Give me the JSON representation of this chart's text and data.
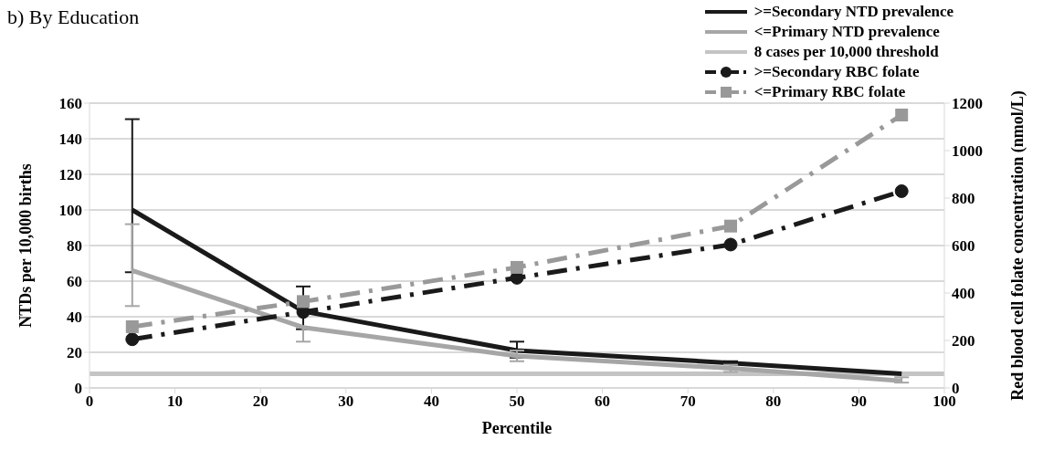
{
  "chart_data": {
    "type": "line",
    "title": "b) By Education",
    "xlabel": "Percentile",
    "ylabel": "NTDs per 10,000 births",
    "y2label": "Red blood cell folate concentration (nmol/L)",
    "x": [
      5,
      25,
      50,
      75,
      95
    ],
    "series": [
      {
        "name": ">=Secondary NTD prevalence",
        "color": "#1a1a1a",
        "values": [
          100,
          43,
          21,
          14,
          8
        ],
        "errors": [
          [
            65,
            151
          ],
          [
            33,
            57
          ],
          [
            17,
            26
          ],
          [
            11,
            15
          ],
          null
        ],
        "marker": "none",
        "line_style": "solid"
      },
      {
        "name": "<=Primary NTD prevalence",
        "color": "#a6a6a6",
        "values": [
          66,
          34,
          18,
          11,
          4
        ],
        "errors": [
          [
            46,
            92
          ],
          [
            26,
            34
          ],
          [
            15,
            21
          ],
          [
            9,
            13
          ],
          [
            3,
            6
          ]
        ],
        "marker": "none",
        "line_style": "solid"
      },
      {
        "name": "8 cases per 10,000 threshold",
        "color": "#c4c4c4",
        "x": [
          0,
          100
        ],
        "values": [
          8,
          8
        ],
        "marker": "none",
        "line_style": "solid"
      },
      {
        "name": ">=Secondary RBC folate",
        "color": "#1a1a1a",
        "axis": "y2",
        "values": [
          205,
          320,
          464,
          604,
          829
        ],
        "marker": "circle",
        "line_style": "dashed"
      },
      {
        "name": "<=Primary RBC folate",
        "color": "#999999",
        "axis": "y2",
        "values": [
          258,
          364,
          508,
          682,
          1150
        ],
        "marker": "square",
        "line_style": "dashed"
      }
    ],
    "xlim": [
      0,
      100
    ],
    "xticks": [
      0,
      10,
      20,
      30,
      40,
      50,
      60,
      70,
      80,
      90,
      100
    ],
    "ylim": [
      0,
      160
    ],
    "yticks": [
      0,
      20,
      40,
      60,
      80,
      100,
      120,
      140,
      160
    ],
    "y2lim": [
      0,
      1200
    ],
    "y2ticks": [
      0,
      200,
      400,
      600,
      800,
      1000,
      1200
    ],
    "grid": "y",
    "legend": "top right"
  }
}
